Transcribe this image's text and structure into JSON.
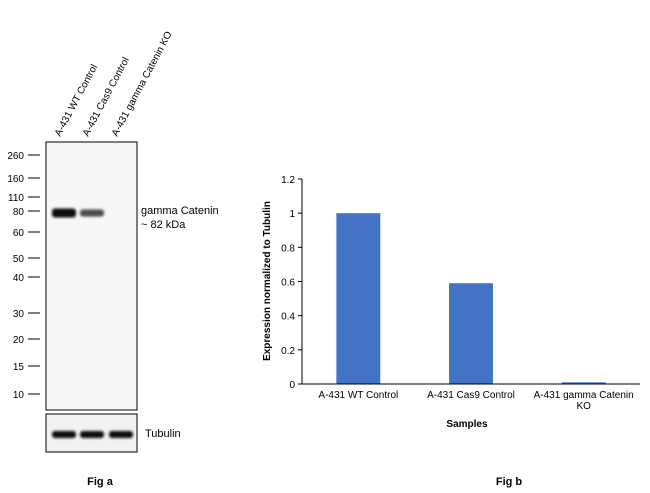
{
  "blot": {
    "lanes": [
      "A-431 WT Control",
      "A-431 Cas9 Control",
      "A-431 gamma Catenin KO"
    ],
    "markers": [
      "260",
      "160",
      "110",
      "80",
      "60",
      "50",
      "40",
      "30",
      "20",
      "15",
      "10"
    ],
    "band_label_line1": "gamma Catenin",
    "band_label_line2": "~ 82 kDa",
    "loading_label": "Tubulin",
    "caption": "Fig a",
    "band_intensity": [
      1.0,
      0.59,
      0.0
    ],
    "tubulin_intensity": [
      1.0,
      1.0,
      1.0
    ]
  },
  "chart_data": {
    "type": "bar",
    "categories": [
      "A-431 WT Control",
      "A-431 Cas9 Control",
      "A-431 gamma Catenin KO"
    ],
    "category_labels": [
      [
        "A-431 WT Control"
      ],
      [
        "A-431 Cas9 Control"
      ],
      [
        "A-431 gamma Catenin",
        "KO"
      ]
    ],
    "values": [
      1.0,
      0.59,
      0.01
    ],
    "xlabel": "Samples",
    "ylabel": "Expression normalized to Tubulin",
    "ylim": [
      0,
      1.2
    ],
    "yticks": [
      "0",
      "0.2",
      "0.4",
      "0.6",
      "0.8",
      "1",
      "1.2"
    ],
    "bar_color": "#4472C4",
    "grid": false,
    "caption": "Fig b"
  }
}
